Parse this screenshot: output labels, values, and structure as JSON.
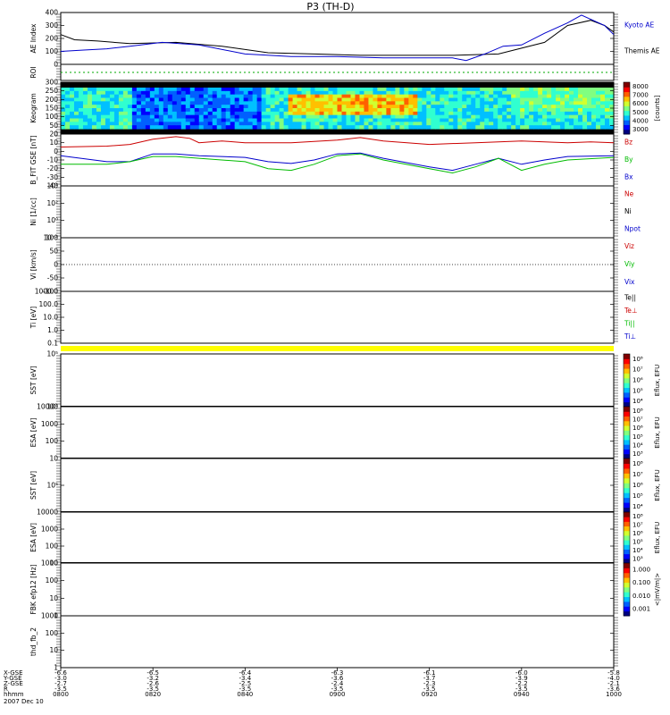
{
  "title": "P3 (TH-D)",
  "footer": {
    "row_labels": [
      "X-GSE",
      "Y-GSE",
      "Z-GSE",
      "R",
      "hhmm",
      "2007 Dec 10"
    ],
    "times": [
      "0800",
      "0820",
      "0840",
      "0900",
      "0920",
      "0940",
      "1000"
    ],
    "x_gse": [
      "-6.6",
      "-6.5",
      "-6.4",
      "-6.3",
      "-6.1",
      "-6.0",
      "-5.8"
    ],
    "y_gse": [
      "-3.0",
      "-3.2",
      "-3.4",
      "-3.6",
      "-3.7",
      "-3.9",
      "-4.0"
    ],
    "z_gse": [
      "-2.7",
      "-2.6",
      "-2.5",
      "-2.4",
      "-2.3",
      "-2.2",
      "-2.1"
    ],
    "r": [
      "-3.5",
      "-3.5",
      "-3.5",
      "-3.5",
      "-3.5",
      "-3.5",
      "-3.6"
    ]
  },
  "chart_data": [
    {
      "type": "line",
      "ylabel": "AE Index",
      "ylim": [
        0,
        400
      ],
      "yticks": [
        "0",
        "100",
        "200",
        "300",
        "400"
      ],
      "legend": [
        {
          "name": "Kyoto AE",
          "color": "#0000cc"
        },
        {
          "name": "Themis AE",
          "color": "#000000"
        }
      ],
      "series": [
        {
          "name": "Themis AE",
          "color": "#000000",
          "x": [
            0,
            3,
            8,
            15,
            25,
            35,
            45,
            55,
            65,
            75,
            85,
            95,
            105,
            110,
            115,
            118,
            120
          ],
          "y": [
            230,
            190,
            180,
            160,
            170,
            140,
            90,
            80,
            70,
            70,
            70,
            80,
            170,
            300,
            340,
            300,
            250
          ]
        },
        {
          "name": "Kyoto AE",
          "color": "#0000cc",
          "x": [
            0,
            5,
            10,
            15,
            22,
            30,
            40,
            50,
            60,
            70,
            80,
            85,
            88,
            92,
            96,
            100,
            105,
            110,
            113,
            118,
            120
          ],
          "y": [
            100,
            110,
            120,
            140,
            170,
            150,
            80,
            60,
            60,
            50,
            50,
            50,
            30,
            80,
            140,
            150,
            240,
            320,
            380,
            300,
            230
          ]
        }
      ]
    },
    {
      "type": "line",
      "ylabel": "ROI",
      "series": [
        {
          "name": "",
          "color": "#00aa00",
          "x": [
            0,
            120
          ],
          "y": [
            0.5,
            0.5
          ]
        }
      ]
    },
    {
      "type": "heatmap",
      "ylabel": "Keogram",
      "ylim": [
        0,
        300
      ],
      "yticks": [
        "0",
        "50",
        "100",
        "150",
        "200",
        "250",
        "300"
      ],
      "colorbar": {
        "ticks": [
          "3000",
          "4000",
          "5000",
          "6000",
          "7000",
          "8000"
        ],
        "label": "[counts]",
        "range": [
          3000,
          8000
        ]
      }
    },
    {
      "type": "line",
      "ylabel": "B_FIT GSE [nT]",
      "ylim": [
        -40,
        20
      ],
      "yticks": [
        "-40",
        "-30",
        "-20",
        "-10",
        "0",
        "10",
        "20"
      ],
      "legend": [
        {
          "name": "Bz",
          "color": "#cc0000"
        },
        {
          "name": "By",
          "color": "#00bb00"
        },
        {
          "name": "Bx",
          "color": "#0000cc"
        }
      ],
      "series": [
        {
          "name": "Bz",
          "color": "#cc0000",
          "x": [
            0,
            10,
            15,
            20,
            25,
            28,
            30,
            35,
            40,
            50,
            60,
            65,
            70,
            80,
            90,
            100,
            110,
            115,
            120
          ],
          "y": [
            5,
            6,
            8,
            14,
            17,
            15,
            10,
            12,
            10,
            10,
            13,
            16,
            12,
            8,
            10,
            12,
            10,
            11,
            10
          ]
        },
        {
          "name": "Bx",
          "color": "#0000cc",
          "x": [
            0,
            10,
            15,
            20,
            25,
            30,
            40,
            45,
            50,
            55,
            60,
            65,
            70,
            80,
            85,
            90,
            95,
            100,
            105,
            110,
            120
          ],
          "y": [
            -5,
            -12,
            -12,
            -3,
            -3,
            -5,
            -7,
            -12,
            -14,
            -10,
            -3,
            -2,
            -8,
            -18,
            -22,
            -15,
            -8,
            -15,
            -10,
            -6,
            -5
          ]
        },
        {
          "name": "By",
          "color": "#00bb00",
          "x": [
            0,
            10,
            15,
            20,
            25,
            30,
            40,
            45,
            50,
            55,
            60,
            65,
            70,
            80,
            85,
            90,
            95,
            100,
            105,
            110,
            120
          ],
          "y": [
            -15,
            -15,
            -12,
            -6,
            -6,
            -8,
            -12,
            -20,
            -22,
            -15,
            -5,
            -3,
            -10,
            -20,
            -25,
            -18,
            -8,
            -22,
            -15,
            -10,
            -7
          ]
        }
      ]
    },
    {
      "type": "line",
      "ylabel": "Ni [1/cc]",
      "ylim": [
        -2,
        4
      ],
      "yticks": [
        "10⁻²",
        "10⁰",
        "10²",
        "10⁴"
      ],
      "legend": [
        {
          "name": "Ne",
          "color": "#cc0000"
        },
        {
          "name": "Ni",
          "color": "#000000"
        },
        {
          "name": "Npot",
          "color": "#0000cc"
        }
      ],
      "series": []
    },
    {
      "type": "line",
      "ylabel": "Vi [km/s]",
      "ylim": [
        -100,
        100
      ],
      "yticks": [
        "-100",
        "-50",
        "0",
        "50",
        "100"
      ],
      "legend": [
        {
          "name": "Viz",
          "color": "#cc0000"
        },
        {
          "name": "Viy",
          "color": "#00bb00"
        },
        {
          "name": "Vix",
          "color": "#0000cc"
        }
      ],
      "series": []
    },
    {
      "type": "line",
      "ylabel": "Ti [eV]",
      "ylim": [
        0.1,
        1000
      ],
      "yticks": [
        "0.1",
        "1.0",
        "10.0",
        "100.0",
        "1000.0"
      ],
      "legend": [
        {
          "name": "Te||",
          "color": "#000000"
        },
        {
          "name": "Te⊥",
          "color": "#cc0000"
        },
        {
          "name": "Ti||",
          "color": "#00bb00"
        },
        {
          "name": "Ti⊥",
          "color": "#0000cc"
        }
      ],
      "series": []
    },
    {
      "type": "heatmap",
      "ylabel": "SST [eV]",
      "ylim": [
        4,
        5.5
      ],
      "yticks": [
        "10⁴",
        "10⁵"
      ],
      "colorbar": {
        "ticks": [
          "10⁴",
          "10⁵",
          "10⁶",
          "10⁷",
          "10⁸"
        ],
        "label": "Eflux, EFU"
      }
    },
    {
      "type": "heatmap",
      "ylabel": "ESA [eV]",
      "ylim": [
        10,
        10000
      ],
      "yticks": [
        "10",
        "100",
        "1000",
        "10000"
      ],
      "colorbar": {
        "ticks": [
          "10³",
          "10⁴",
          "10⁵",
          "10⁶",
          "10⁷",
          "10⁸"
        ],
        "label": "Eflux, EFU"
      }
    },
    {
      "type": "heatmap",
      "ylabel": "SST [eV]",
      "ylim": [
        4.5,
        5.5
      ],
      "yticks": [
        "10⁵"
      ],
      "colorbar": {
        "ticks": [
          "10⁴",
          "10⁵",
          "10⁶",
          "10⁷",
          "10⁸"
        ],
        "label": "Eflux, EFU"
      }
    },
    {
      "type": "heatmap",
      "ylabel": "ESA [eV]",
      "ylim": [
        10,
        10000
      ],
      "yticks": [
        "10",
        "100",
        "1000",
        "10000"
      ],
      "colorbar": {
        "ticks": [
          "10³",
          "10⁴",
          "10⁵",
          "10⁶",
          "10⁷",
          "10⁸"
        ],
        "label": "Eflux, EFU"
      }
    },
    {
      "type": "heatmap",
      "ylabel": "FBK efp12 [Hz]",
      "ylim": [
        1,
        1000
      ],
      "yticks": [
        "1",
        "10",
        "100",
        "1000"
      ],
      "colorbar": {
        "ticks": [
          "0.001",
          "0.010",
          "0.100",
          "1.000"
        ],
        "label": "<|mV/m|>"
      }
    },
    {
      "type": "line",
      "ylabel": "thd_fb_2",
      "ylim": [
        1,
        1000
      ],
      "yticks": [
        "1",
        "10",
        "100",
        "1000"
      ],
      "series": []
    }
  ]
}
